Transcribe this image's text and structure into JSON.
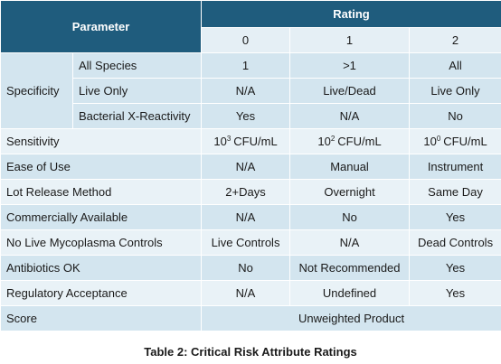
{
  "header": {
    "parameter": "Parameter",
    "rating": "Rating",
    "levels": [
      "0",
      "1",
      "2"
    ]
  },
  "specificity": {
    "label": "Specificity",
    "rows": [
      {
        "sub": "All Species",
        "ratings": [
          "1",
          ">1",
          "All"
        ]
      },
      {
        "sub": "Live Only",
        "ratings": [
          "N/A",
          "Live/Dead",
          "Live Only"
        ]
      },
      {
        "sub": "Bacterial X-Reactivity",
        "ratings": [
          "Yes",
          "N/A",
          "No"
        ]
      }
    ]
  },
  "rows": [
    {
      "label": "Sensitivity",
      "ratings": [
        {
          "base": "10",
          "sup": "3",
          "unit": "CFU/mL"
        },
        {
          "base": "10",
          "sup": "2",
          "unit": "CFU/mL"
        },
        {
          "base": "10",
          "sup": "0",
          "unit": "CFU/mL"
        }
      ]
    },
    {
      "label": "Ease of Use",
      "ratings": [
        "N/A",
        "Manual",
        "Instrument"
      ]
    },
    {
      "label": "Lot Release Method",
      "ratings": [
        "2+Days",
        "Overnight",
        "Same Day"
      ]
    },
    {
      "label": "Commercially Available",
      "ratings": [
        "N/A",
        "No",
        "Yes"
      ]
    },
    {
      "label": "No Live Mycoplasma Controls",
      "ratings": [
        "Live Controls",
        "N/A",
        "Dead Controls"
      ]
    },
    {
      "label": "Antibiotics OK",
      "ratings": [
        "No",
        "Not Recommended",
        "Yes"
      ]
    },
    {
      "label": "Regulatory Acceptance",
      "ratings": [
        "N/A",
        "Undefined",
        "Yes"
      ]
    }
  ],
  "score": {
    "label": "Score",
    "value": "Unweighted Product"
  },
  "caption": "Table 2: Critical Risk Attribute Ratings"
}
